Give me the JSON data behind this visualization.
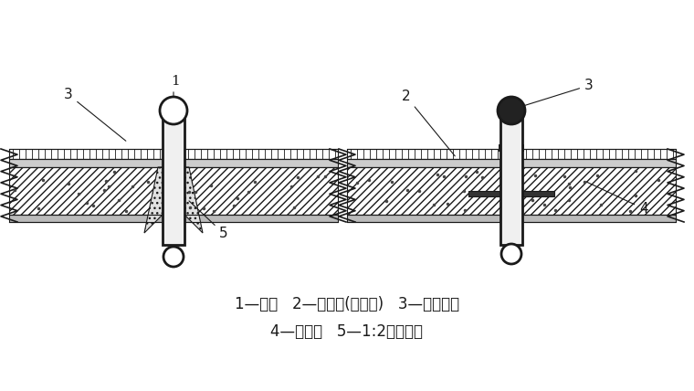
{
  "title": "",
  "legend_line1": "1—面层   2—找平层(防水层)   3—密封材料",
  "legend_line2": "4—止水带   5—1:2水泥砂浆",
  "bg_color": "#ffffff",
  "text_color": "#1a1a1a",
  "font_size": 12
}
